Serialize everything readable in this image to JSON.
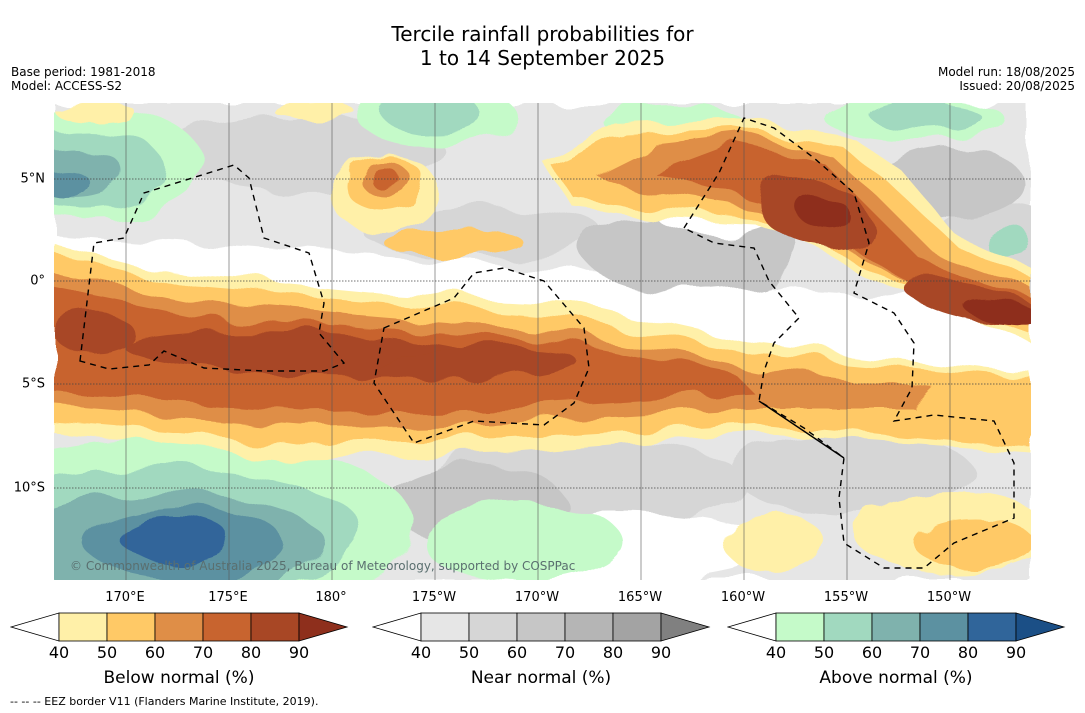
{
  "title": {
    "line1": "Tercile rainfall probabilities for",
    "line2": "1 to 14 September 2025"
  },
  "meta_left": {
    "base_period": "Base period: 1981-2018",
    "model": "Model: ACCESS-S2"
  },
  "meta_right": {
    "model_run": "Model run: 18/08/2025",
    "issued": "Issued: 20/08/2025"
  },
  "map": {
    "longitude_labels": [
      "170°E",
      "175°E",
      "180°",
      "175°W",
      "170°W",
      "165°W",
      "160°W",
      "155°W",
      "150°W"
    ],
    "latitude_labels": [
      "5°N",
      "0°",
      "5°S",
      "10°S"
    ],
    "copyright": "© Commonwealth of Australia 2025, Bureau of Meteorology, supported by COSPPac",
    "colors": {
      "below": [
        "#fff0a8",
        "#ffc966",
        "#df8e47",
        "#c8642f",
        "#a84725",
        "#8e2f1c"
      ],
      "near": [
        "#e6e6e6",
        "#d6d6d6",
        "#c6c6c6",
        "#b5b5b5",
        "#a3a3a3",
        "#808080"
      ],
      "above": [
        "#c5fac9",
        "#a1d9bf",
        "#7fb2ad",
        "#5c91a1",
        "#30659a",
        "#1b4f86"
      ]
    }
  },
  "legends": [
    {
      "id": "below",
      "title": "Below normal (%)",
      "ticks": [
        "40",
        "50",
        "60",
        "70",
        "80",
        "90"
      ]
    },
    {
      "id": "near",
      "title": "Near normal (%)",
      "ticks": [
        "40",
        "50",
        "60",
        "70",
        "80",
        "90"
      ]
    },
    {
      "id": "above",
      "title": "Above normal (%)",
      "ticks": [
        "40",
        "50",
        "60",
        "70",
        "80",
        "90"
      ]
    }
  ],
  "footer": "--  --  -- EEZ border V11 (Flanders Marine Institute, 2019)."
}
